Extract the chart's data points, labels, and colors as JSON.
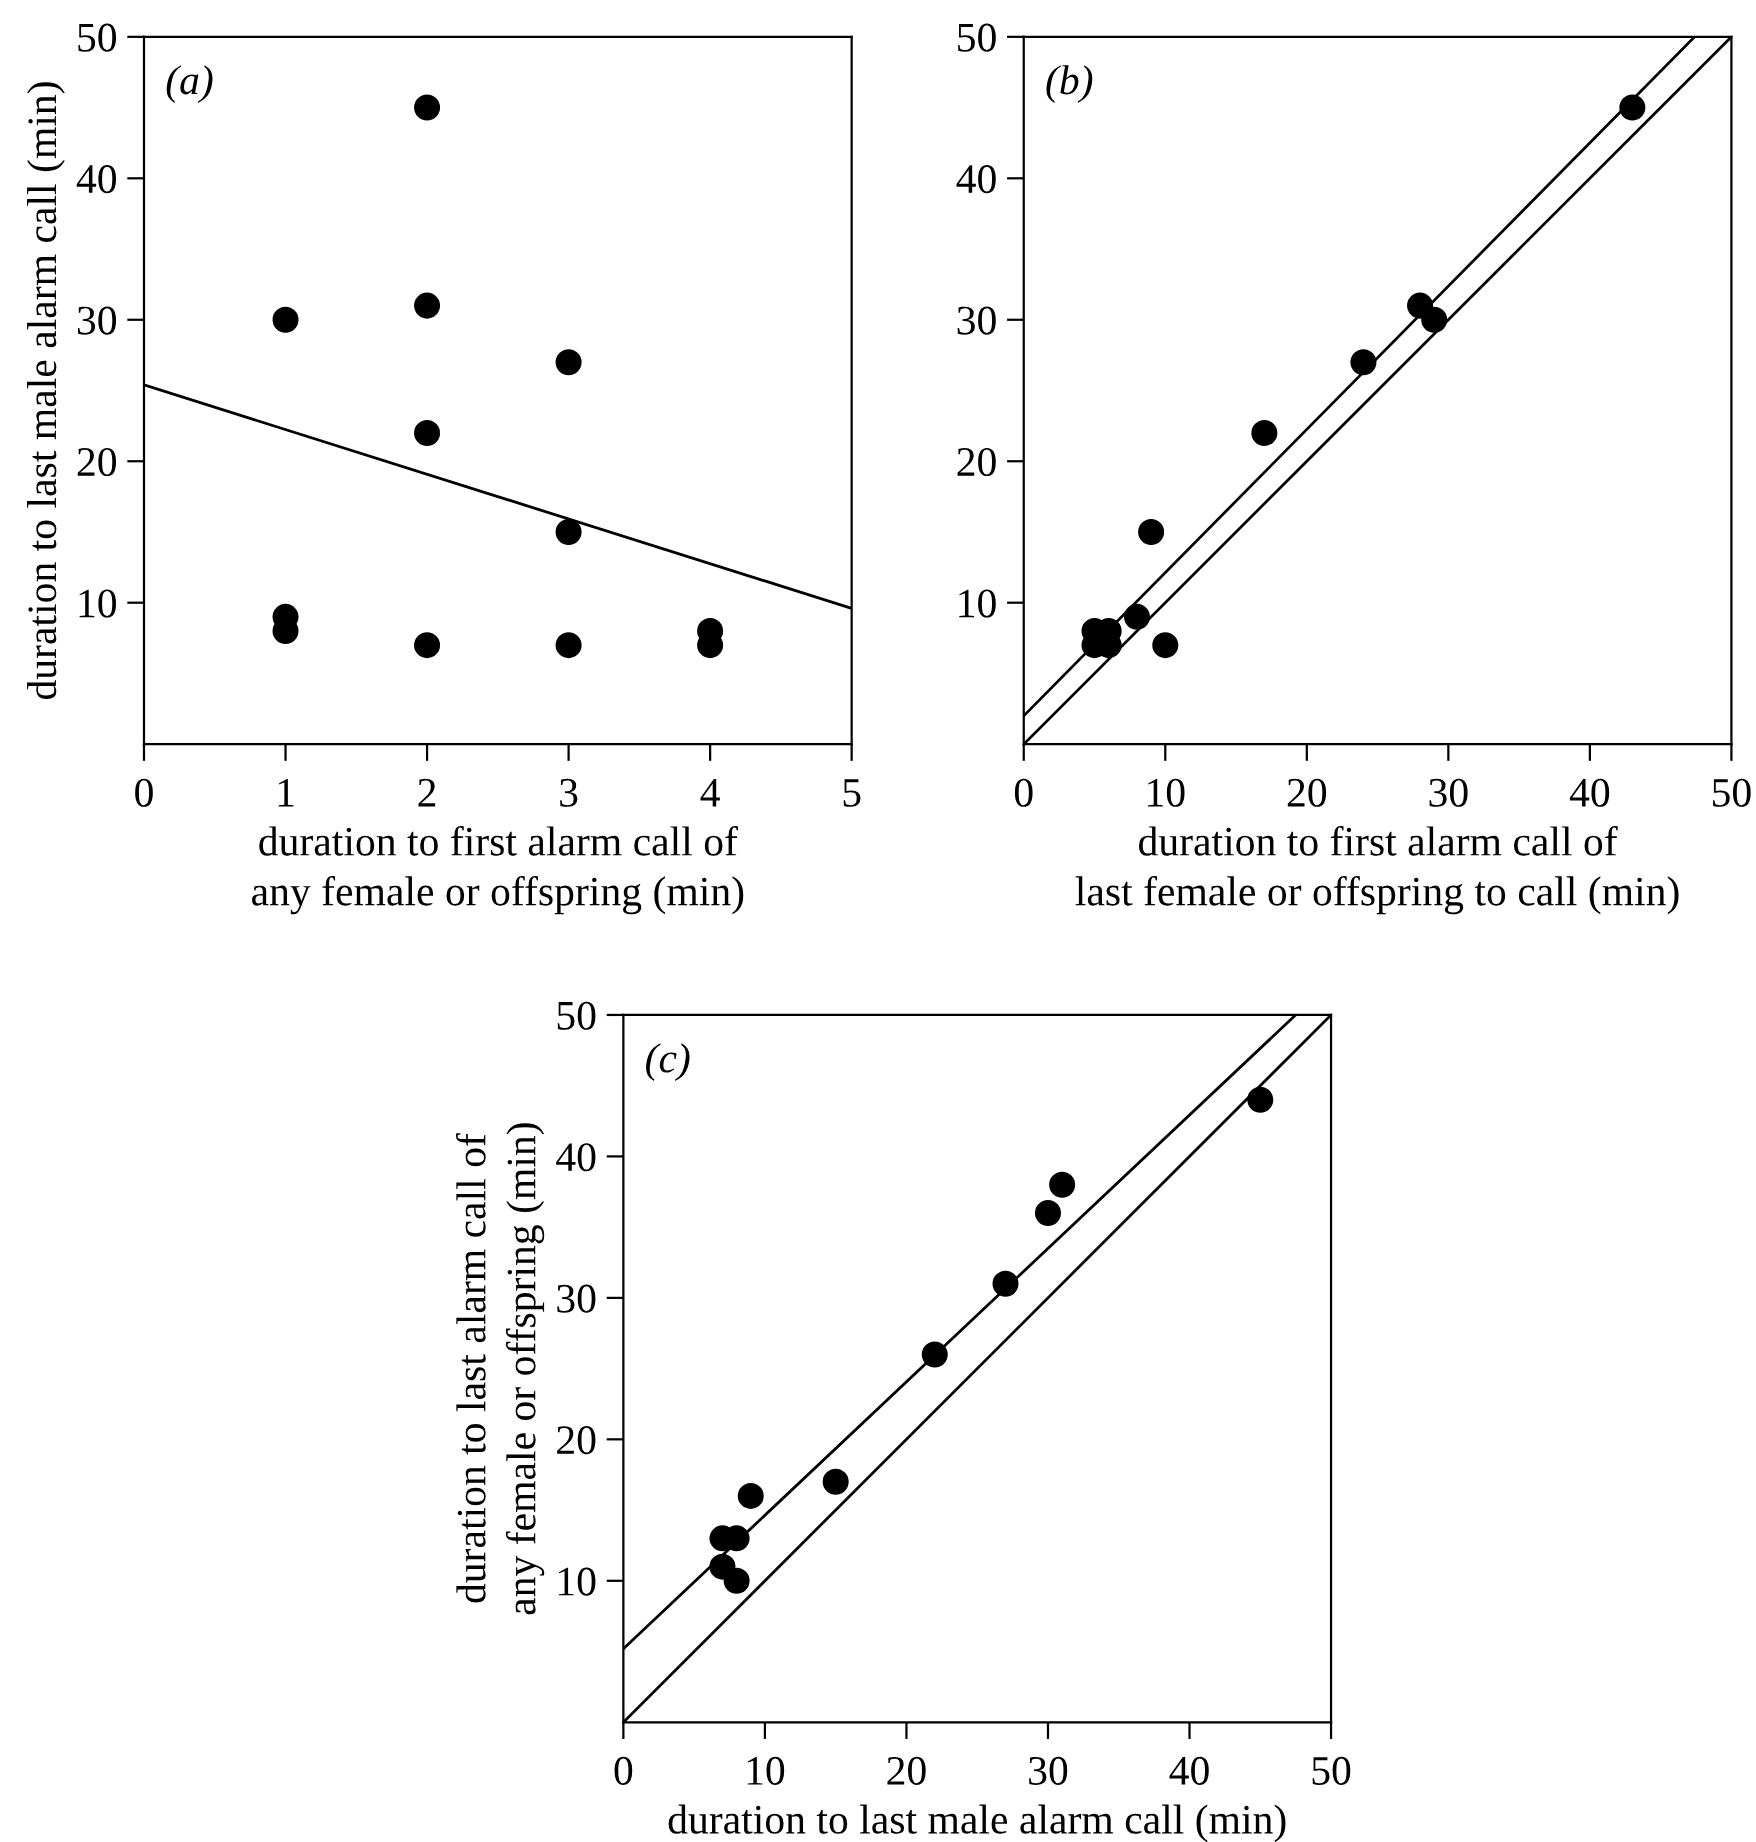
{
  "chart_data": [
    {
      "type": "scatter",
      "xlabel": "duration to first alarm call of\nany female or offspring (min)",
      "ylabel": "duration to last male alarm call (min)",
      "annotations": [
        "(a)"
      ],
      "xlim": [
        0,
        5
      ],
      "ylim": [
        0,
        50
      ],
      "xticks": [
        0,
        1,
        2,
        3,
        4,
        5
      ],
      "yticks": [
        10,
        20,
        30,
        40,
        50
      ],
      "grid": false,
      "legend": false,
      "series": [
        {
          "marker": "circle",
          "color": "#000000",
          "x": [
            1,
            1,
            1,
            2,
            2,
            2,
            2,
            3,
            3,
            3,
            4,
            4
          ],
          "values": [
            30,
            9,
            8,
            45,
            31,
            22,
            7,
            27,
            15,
            7,
            8,
            7
          ]
        },
        {
          "type": "line",
          "marker": "none",
          "color": "#000000",
          "x": [
            0,
            5
          ],
          "values": [
            25.4,
            9.6
          ]
        }
      ]
    },
    {
      "type": "scatter",
      "xlabel": "duration to first alarm call of\nlast female or offspring to call (min)",
      "annotations": [
        "(b)"
      ],
      "xlim": [
        0,
        50
      ],
      "ylim": [
        0,
        50
      ],
      "xticks": [
        0,
        10,
        20,
        30,
        40,
        50
      ],
      "yticks": [
        10,
        20,
        30,
        40,
        50
      ],
      "grid": false,
      "legend": false,
      "series": [
        {
          "marker": "circle",
          "color": "#000000",
          "x": [
            5,
            5,
            6,
            6,
            8,
            9,
            10,
            17,
            24,
            28,
            29,
            43
          ],
          "values": [
            8,
            7,
            8,
            7,
            9,
            15,
            7,
            22,
            27,
            31,
            30,
            45
          ]
        },
        {
          "type": "line",
          "marker": "none",
          "color": "#000000",
          "x": [
            0,
            47.4
          ],
          "values": [
            2,
            50
          ]
        },
        {
          "type": "line",
          "marker": "none",
          "color": "#000000",
          "x": [
            0,
            50
          ],
          "values": [
            0,
            50
          ]
        }
      ]
    },
    {
      "type": "scatter",
      "xlabel": "duration to last male alarm call (min)",
      "ylabel": "duration to last alarm call of\nany female or offspring (min)",
      "annotations": [
        "(c)"
      ],
      "xlim": [
        0,
        50
      ],
      "ylim": [
        0,
        50
      ],
      "xticks": [
        0,
        10,
        20,
        30,
        40,
        50
      ],
      "yticks": [
        10,
        20,
        30,
        40,
        50
      ],
      "grid": false,
      "legend": false,
      "series": [
        {
          "marker": "circle",
          "color": "#000000",
          "x": [
            7,
            8,
            7,
            8,
            9,
            15,
            22,
            27,
            30,
            31,
            45
          ],
          "values": [
            13,
            13,
            11,
            10,
            16,
            17,
            26,
            31,
            36,
            38,
            44
          ]
        },
        {
          "type": "line",
          "marker": "none",
          "color": "#000000",
          "x": [
            0,
            47.5
          ],
          "values": [
            5.2,
            50
          ]
        },
        {
          "type": "line",
          "marker": "none",
          "color": "#000000",
          "x": [
            0,
            50
          ],
          "values": [
            0,
            50
          ]
        }
      ]
    }
  ]
}
